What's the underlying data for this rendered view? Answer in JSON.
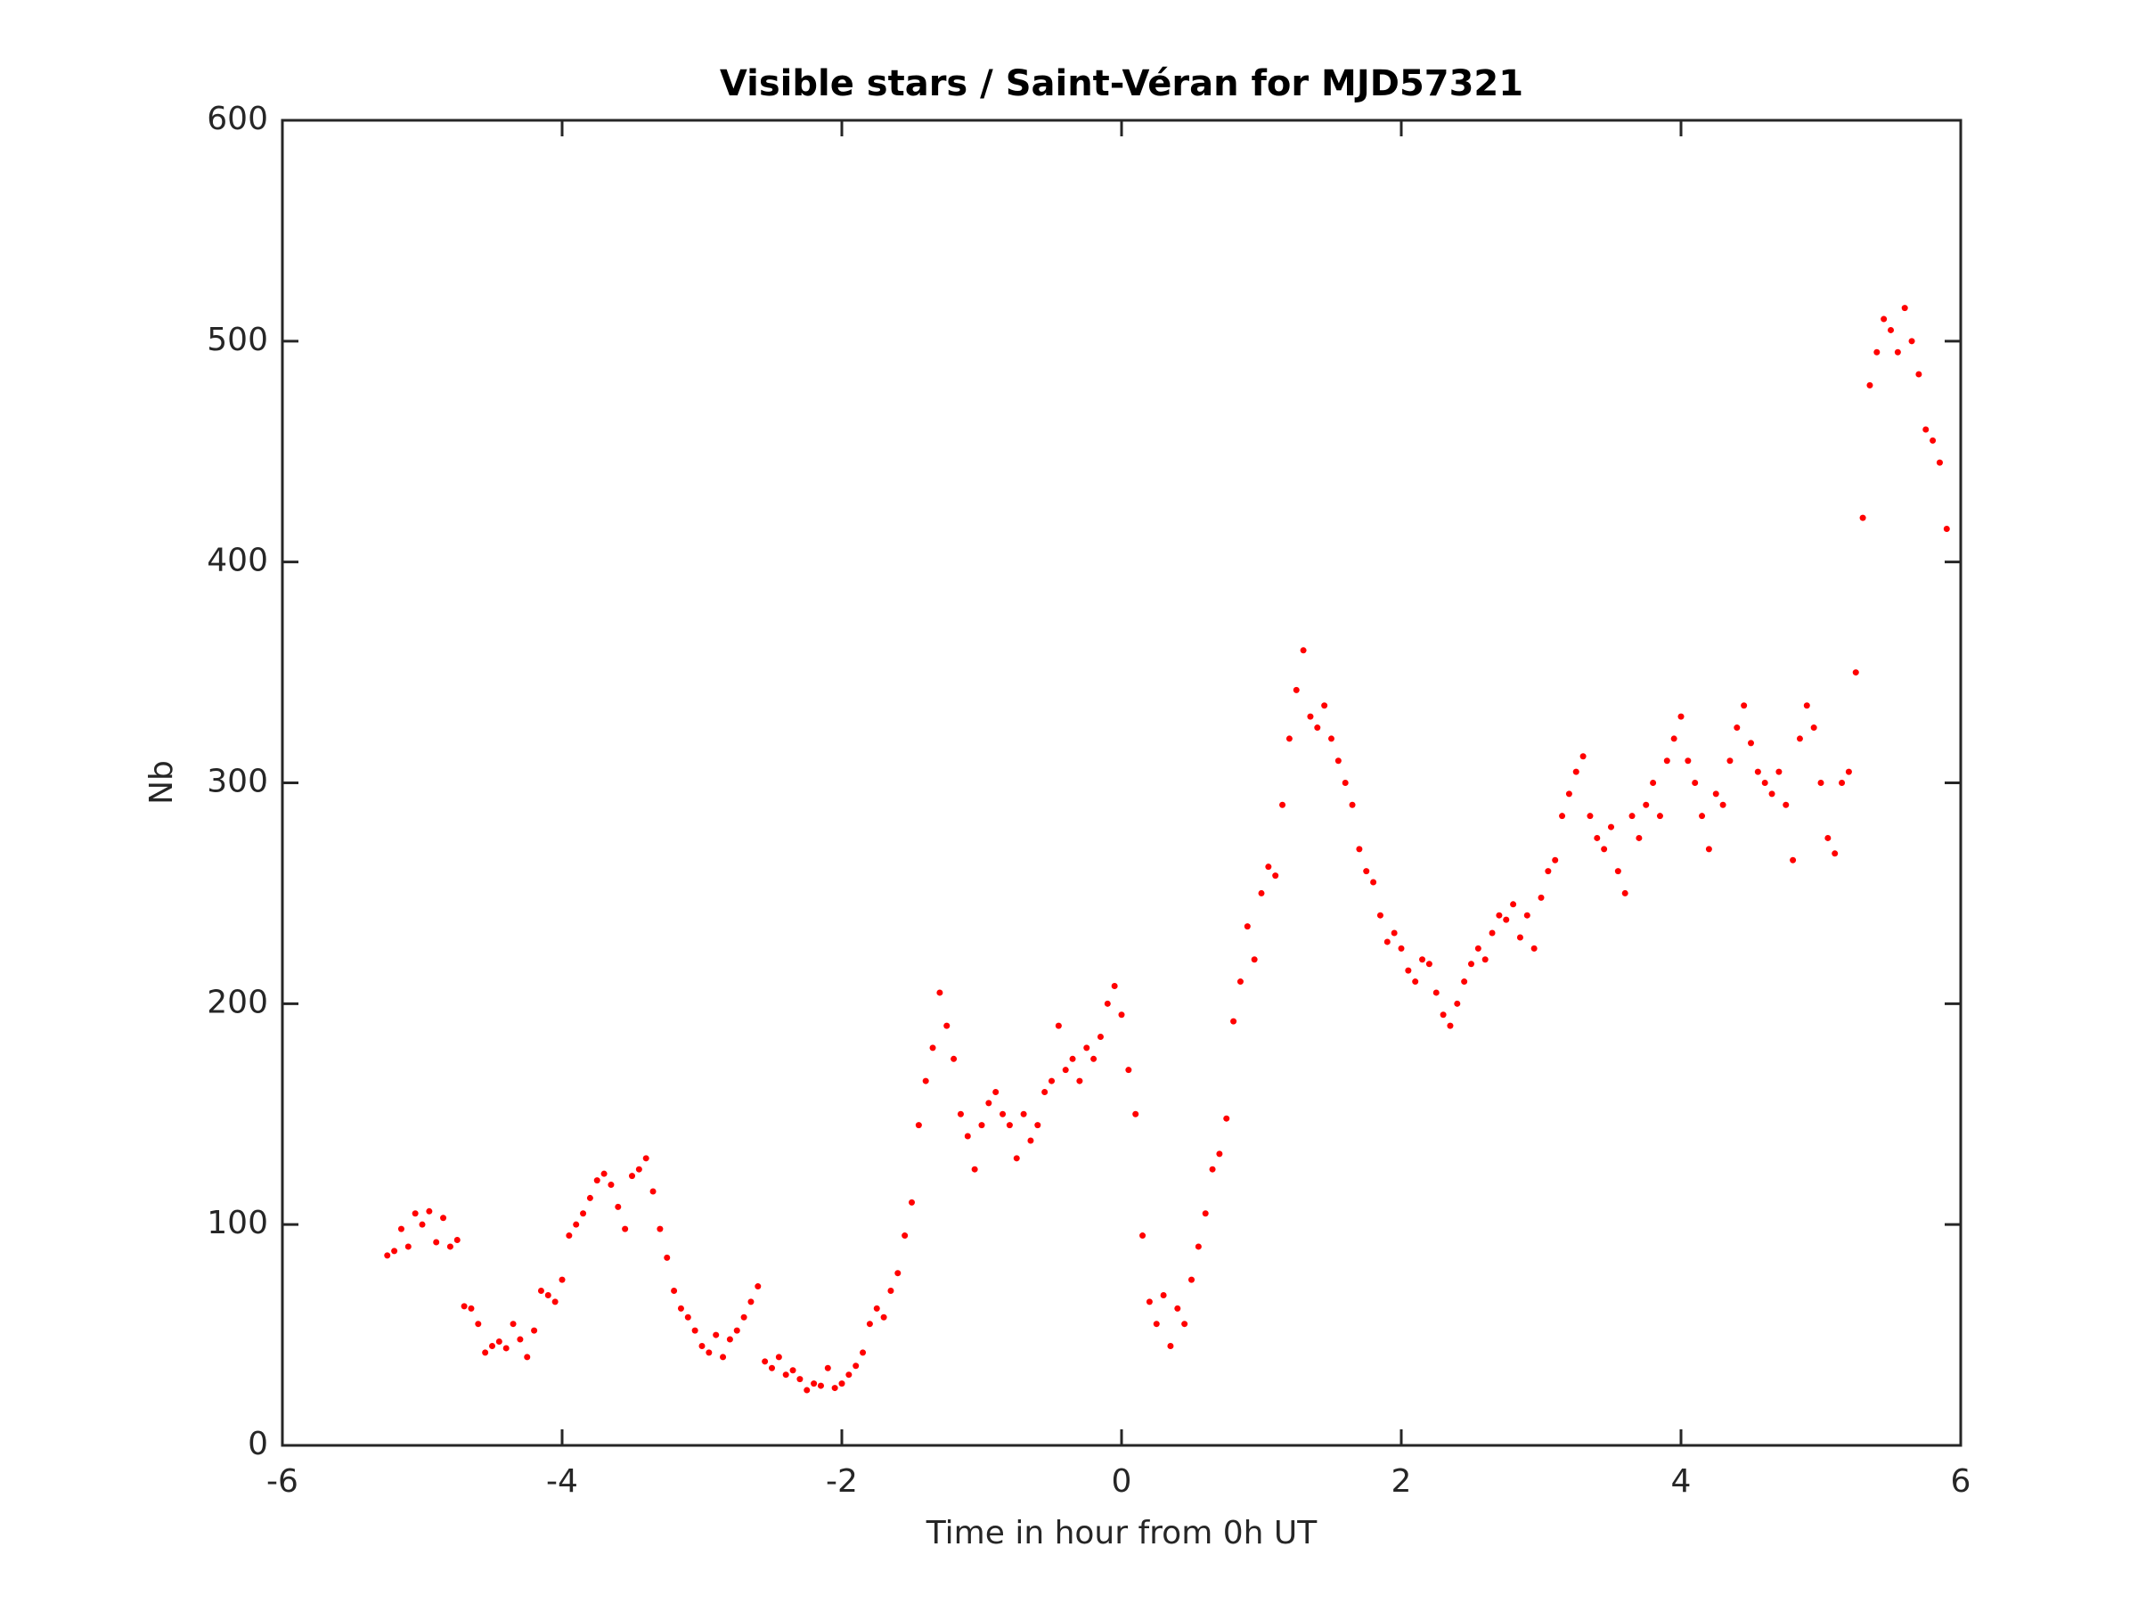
{
  "chart_data": {
    "type": "scatter",
    "title": "Visible stars / Saint-Véran for MJD57321",
    "x_label": "Time in hour from 0h UT",
    "y_label": "Nb",
    "xlim": [
      -6,
      6
    ],
    "xticks": [
      -6,
      -4,
      -2,
      0,
      2,
      4,
      6
    ],
    "ylim": [
      0,
      600
    ],
    "yticks": [
      0,
      100,
      200,
      300,
      400,
      500,
      600
    ],
    "grid": false,
    "color": "#ff0000",
    "x": [
      -5.25,
      -5.2,
      -5.15,
      -5.1,
      -5.05,
      -5.0,
      -4.95,
      -4.9,
      -4.85,
      -4.8,
      -4.75,
      -4.7,
      -4.65,
      -4.6,
      -4.55,
      -4.5,
      -4.45,
      -4.4,
      -4.35,
      -4.3,
      -4.25,
      -4.2,
      -4.15,
      -4.1,
      -4.05,
      -4.0,
      -3.95,
      -3.9,
      -3.85,
      -3.8,
      -3.75,
      -3.7,
      -3.65,
      -3.6,
      -3.55,
      -3.5,
      -3.45,
      -3.4,
      -3.35,
      -3.3,
      -3.25,
      -3.2,
      -3.15,
      -3.1,
      -3.05,
      -3.0,
      -2.95,
      -2.9,
      -2.85,
      -2.8,
      -2.75,
      -2.7,
      -2.65,
      -2.6,
      -2.55,
      -2.5,
      -2.45,
      -2.4,
      -2.35,
      -2.3,
      -2.25,
      -2.2,
      -2.15,
      -2.1,
      -2.05,
      -2.0,
      -1.95,
      -1.9,
      -1.85,
      -1.8,
      -1.75,
      -1.7,
      -1.65,
      -1.6,
      -1.55,
      -1.5,
      -1.45,
      -1.4,
      -1.35,
      -1.3,
      -1.25,
      -1.2,
      -1.15,
      -1.1,
      -1.05,
      -1.0,
      -0.95,
      -0.9,
      -0.85,
      -0.8,
      -0.75,
      -0.7,
      -0.65,
      -0.6,
      -0.55,
      -0.5,
      -0.45,
      -0.4,
      -0.35,
      -0.3,
      -0.25,
      -0.2,
      -0.15,
      -0.1,
      -0.05,
      0.0,
      0.05,
      0.1,
      0.15,
      0.2,
      0.25,
      0.3,
      0.35,
      0.4,
      0.45,
      0.5,
      0.55,
      0.6,
      0.65,
      0.7,
      0.75,
      0.8,
      0.85,
      0.9,
      0.95,
      1.0,
      1.05,
      1.1,
      1.15,
      1.2,
      1.25,
      1.3,
      1.35,
      1.4,
      1.45,
      1.5,
      1.55,
      1.6,
      1.65,
      1.7,
      1.75,
      1.8,
      1.85,
      1.9,
      1.95,
      2.0,
      2.05,
      2.1,
      2.15,
      2.2,
      2.25,
      2.3,
      2.35,
      2.4,
      2.45,
      2.5,
      2.55,
      2.6,
      2.65,
      2.7,
      2.75,
      2.8,
      2.85,
      2.9,
      2.95,
      3.0,
      3.05,
      3.1,
      3.15,
      3.2,
      3.25,
      3.3,
      3.35,
      3.4,
      3.45,
      3.5,
      3.55,
      3.6,
      3.65,
      3.7,
      3.75,
      3.8,
      3.85,
      3.9,
      3.95,
      4.0,
      4.05,
      4.1,
      4.15,
      4.2,
      4.25,
      4.3,
      4.35,
      4.4,
      4.45,
      4.5,
      4.55,
      4.6,
      4.65,
      4.7,
      4.75,
      4.8,
      4.85,
      4.9,
      4.95,
      5.0,
      5.05,
      5.1,
      5.15,
      5.2,
      5.25,
      5.3,
      5.35,
      5.4,
      5.45,
      5.5,
      5.55,
      5.6,
      5.65,
      5.7,
      5.75,
      5.8,
      5.85,
      5.9
    ],
    "values": [
      86,
      88,
      98,
      90,
      105,
      100,
      106,
      92,
      103,
      90,
      93,
      63,
      62,
      55,
      42,
      45,
      47,
      44,
      55,
      48,
      40,
      52,
      70,
      68,
      65,
      75,
      95,
      100,
      105,
      112,
      120,
      123,
      118,
      108,
      98,
      122,
      125,
      130,
      115,
      98,
      85,
      70,
      62,
      58,
      52,
      45,
      42,
      50,
      40,
      48,
      52,
      58,
      65,
      72,
      38,
      35,
      40,
      32,
      34,
      30,
      25,
      28,
      27,
      35,
      26,
      28,
      32,
      36,
      42,
      55,
      62,
      58,
      70,
      78,
      95,
      110,
      145,
      165,
      180,
      205,
      190,
      175,
      150,
      140,
      125,
      145,
      155,
      160,
      150,
      145,
      130,
      150,
      138,
      145,
      160,
      165,
      190,
      170,
      175,
      165,
      180,
      175,
      185,
      200,
      208,
      195,
      170,
      150,
      95,
      65,
      55,
      68,
      45,
      62,
      55,
      75,
      90,
      105,
      125,
      132,
      148,
      192,
      210,
      235,
      220,
      250,
      262,
      258,
      290,
      320,
      342,
      360,
      330,
      325,
      335,
      320,
      310,
      300,
      290,
      270,
      260,
      255,
      240,
      228,
      232,
      225,
      215,
      210,
      220,
      218,
      205,
      195,
      190,
      200,
      210,
      218,
      225,
      220,
      232,
      240,
      238,
      245,
      230,
      240,
      225,
      248,
      260,
      265,
      285,
      295,
      305,
      312,
      285,
      275,
      270,
      280,
      260,
      250,
      285,
      275,
      290,
      300,
      285,
      310,
      320,
      330,
      310,
      300,
      285,
      270,
      295,
      290,
      310,
      325,
      335,
      318,
      305,
      300,
      295,
      305,
      290,
      265,
      320,
      335,
      325,
      300,
      275,
      268,
      300,
      305,
      350,
      420,
      480,
      495,
      510,
      505,
      495,
      515,
      500,
      485,
      460,
      455,
      445,
      415
    ]
  }
}
